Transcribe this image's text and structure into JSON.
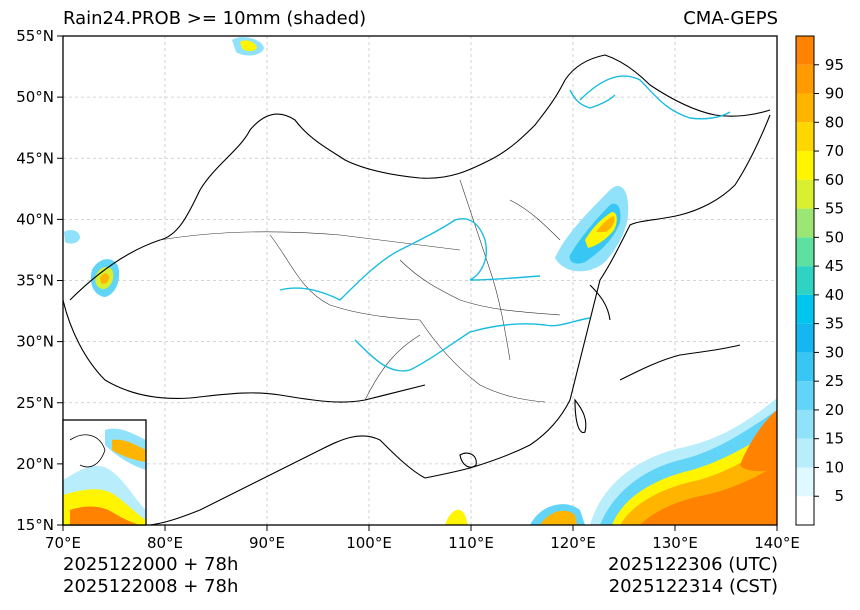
{
  "title": {
    "left": "Rain24.PROB >= 10mm (shaded)",
    "right": "CMA-GEPS"
  },
  "map": {
    "projection": "PlateCarree",
    "lon_range": [
      70,
      140
    ],
    "lat_range": [
      15,
      55
    ],
    "lon_ticks": [
      "70°E",
      "80°E",
      "90°E",
      "100°E",
      "110°E",
      "120°E",
      "130°E",
      "140°E"
    ],
    "lat_ticks": [
      "15°N",
      "20°N",
      "25°N",
      "30°N",
      "35°N",
      "40°N",
      "45°N",
      "50°N",
      "55°N"
    ],
    "gridlines": true,
    "inset": "South China Sea"
  },
  "colorbar": {
    "levels": [
      "5",
      "10",
      "15",
      "20",
      "25",
      "30",
      "35",
      "40",
      "45",
      "50",
      "55",
      "60",
      "70",
      "80",
      "90",
      "95"
    ],
    "colors": [
      "#ffffff",
      "#e0f8ff",
      "#b8eefc",
      "#8fe2fa",
      "#62d4f7",
      "#38c6f4",
      "#14b7f0",
      "#00c6ef",
      "#2fd3c4",
      "#5ee1a0",
      "#9ce673",
      "#d8f030",
      "#fff500",
      "#ffd700",
      "#ffb400",
      "#ff9a00",
      "#ff8200"
    ]
  },
  "footer": {
    "init_utc": "2025122000 + 78h",
    "init_cst": "2025122008 + 78h",
    "valid_utc": "2025122306 (UTC)",
    "valid_cst": "2025122314 (CST)"
  }
}
